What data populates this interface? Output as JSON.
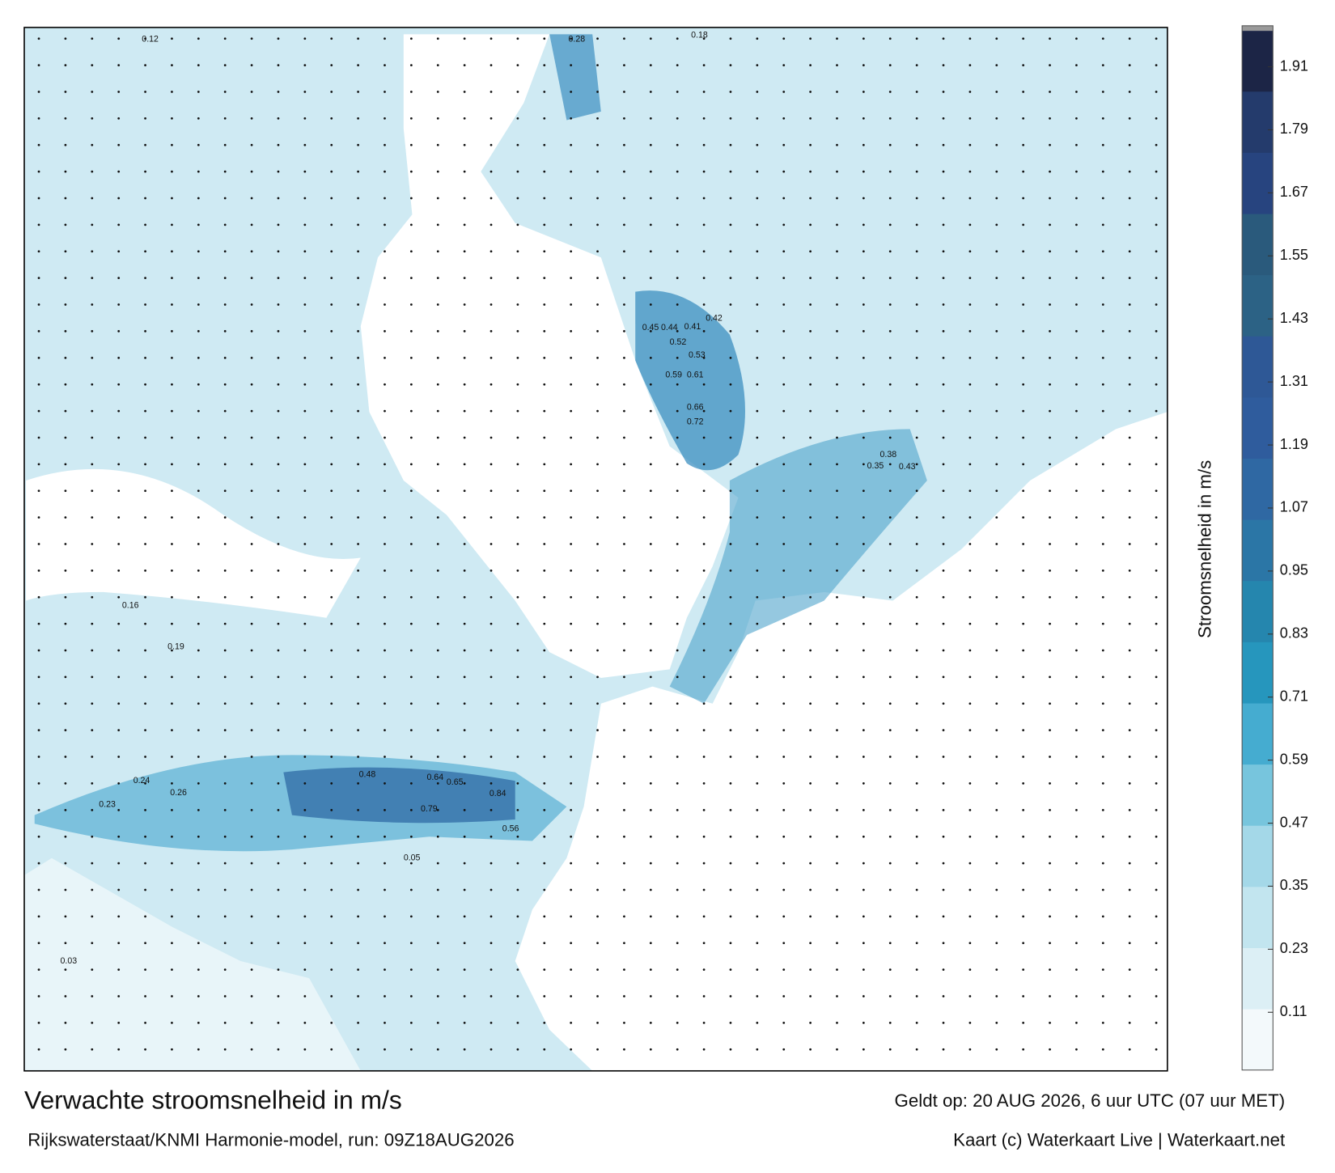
{
  "chart_data": {
    "type": "map",
    "title": "Verwachte stroomsnelheid in m/s",
    "subtitle": "Rijkswaterstaat/KNMI Harmonie-model, run: 09Z18AUG2026",
    "valid_time": "Geldt op: 20 AUG 2026, 6 uur UTC (07 uur MET)",
    "credit": "Kaart (c) Waterkaart Live | Waterkaart.net",
    "colorbar": {
      "label": "Stroomsnelheid in m/s",
      "lim": [
        0,
        1.98
      ],
      "ticks": [
        0.11,
        0.23,
        0.35,
        0.47,
        0.59,
        0.71,
        0.83,
        0.95,
        1.07,
        1.19,
        1.31,
        1.43,
        1.55,
        1.67,
        1.79,
        1.91
      ],
      "colors": [
        "#f3f9fb",
        "#dceff5",
        "#c2e5ef",
        "#a4d8e8",
        "#77c5dd",
        "#45acd0",
        "#2696bd",
        "#2586ae",
        "#2b76a6",
        "#2f68a3",
        "#2f5c9d",
        "#2e5896",
        "#2c6285",
        "#2a5a7c",
        "#27447f",
        "#243b6c",
        "#1c2546"
      ]
    },
    "labels": [
      0.84,
      0.79,
      0.72,
      0.66,
      0.61,
      0.59,
      0.53,
      0.52,
      0.45,
      0.44,
      0.41,
      0.42,
      0.28,
      0.18,
      0.12,
      0.43,
      0.38,
      0.35,
      0.65,
      0.64,
      0.56,
      0.48,
      0.26,
      0.24,
      0.23,
      0.19,
      0.16,
      0.05,
      0.03
    ]
  }
}
